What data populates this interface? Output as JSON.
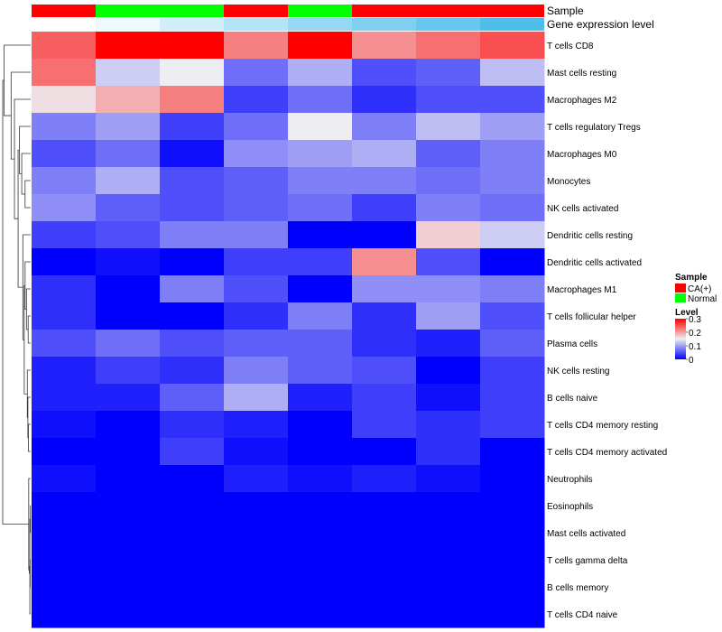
{
  "chart_data": {
    "type": "heatmap",
    "annotations": {
      "sample": {
        "label": "Sample",
        "values": [
          "CA(+)",
          "Normal",
          "Normal",
          "CA(+)",
          "Normal",
          "CA(+)",
          "CA(+)",
          "CA(+)"
        ]
      },
      "gene_expression": {
        "label": "Gene expression level",
        "values": [
          0.0,
          0.03,
          0.08,
          0.13,
          0.18,
          0.22,
          0.26,
          0.3
        ]
      }
    },
    "rows": [
      "T cells CD8",
      "Mast cells resting",
      "Macrophages M2",
      "T cells regulatory  Tregs",
      "Macrophages M0",
      "Monocytes",
      "NK cells activated",
      "Dendritic cells resting",
      "Dendritic cells activated",
      "Macrophages M1",
      "T cells follicular helper",
      "Plasma cells",
      "NK cells resting",
      "B cells naive",
      "T cells CD4 memory resting",
      "T cells CD4 memory activated",
      "Neutrophils",
      "Eosinophils",
      "Mast cells activated",
      "T cells gamma delta",
      "B cells memory",
      "T cells CD4 naive"
    ],
    "values": [
      [
        0.24,
        0.3,
        0.3,
        0.22,
        0.3,
        0.21,
        0.23,
        0.25
      ],
      [
        0.23,
        0.13,
        0.15,
        0.07,
        0.11,
        0.05,
        0.06,
        0.12
      ],
      [
        0.16,
        0.19,
        0.22,
        0.04,
        0.07,
        0.03,
        0.05,
        0.05
      ],
      [
        0.08,
        0.1,
        0.04,
        0.07,
        0.15,
        0.08,
        0.12,
        0.1
      ],
      [
        0.05,
        0.07,
        0.01,
        0.09,
        0.1,
        0.11,
        0.06,
        0.08
      ],
      [
        0.08,
        0.11,
        0.05,
        0.06,
        0.08,
        0.08,
        0.07,
        0.08
      ],
      [
        0.09,
        0.06,
        0.05,
        0.06,
        0.07,
        0.04,
        0.08,
        0.07
      ],
      [
        0.04,
        0.05,
        0.08,
        0.08,
        0.0,
        0.0,
        0.17,
        0.13
      ],
      [
        0.0,
        0.01,
        0.0,
        0.04,
        0.04,
        0.21,
        0.05,
        0.0
      ],
      [
        0.03,
        0.0,
        0.08,
        0.05,
        0.0,
        0.09,
        0.09,
        0.08
      ],
      [
        0.03,
        0.0,
        0.0,
        0.03,
        0.08,
        0.03,
        0.1,
        0.05
      ],
      [
        0.05,
        0.07,
        0.05,
        0.06,
        0.06,
        0.03,
        0.02,
        0.06
      ],
      [
        0.02,
        0.04,
        0.03,
        0.08,
        0.06,
        0.05,
        0.0,
        0.04
      ],
      [
        0.02,
        0.02,
        0.06,
        0.11,
        0.02,
        0.04,
        0.01,
        0.04
      ],
      [
        0.01,
        0.0,
        0.03,
        0.02,
        0.0,
        0.04,
        0.03,
        0.04
      ],
      [
        0.0,
        0.0,
        0.04,
        0.01,
        0.0,
        0.0,
        0.03,
        0.0
      ],
      [
        0.01,
        0.0,
        0.0,
        0.02,
        0.01,
        0.02,
        0.01,
        0.0
      ],
      [
        0.0,
        0.0,
        0.0,
        0.0,
        0.0,
        0.0,
        0.0,
        0.0
      ],
      [
        0.0,
        0.0,
        0.0,
        0.0,
        0.0,
        0.0,
        0.0,
        0.0
      ],
      [
        0.0,
        0.0,
        0.0,
        0.0,
        0.0,
        0.0,
        0.0,
        0.0
      ],
      [
        0.0,
        0.0,
        0.0,
        0.0,
        0.0,
        0.0,
        0.0,
        0.0
      ],
      [
        0.0,
        0.0,
        0.0,
        0.0,
        0.0,
        0.0,
        0.0,
        0.0
      ]
    ],
    "color_scale": {
      "min": 0,
      "max": 0.3,
      "stops": [
        {
          "value": 0,
          "color": "#0000ff"
        },
        {
          "value": 0.15,
          "color": "#eeeef2"
        },
        {
          "value": 0.3,
          "color": "#ff0000"
        }
      ]
    },
    "legend": {
      "position": "right",
      "sample_title": "Sample",
      "sample_entries": [
        {
          "label": "CA(+)",
          "color": "#ff0000"
        },
        {
          "label": "Normal",
          "color": "#00ff00"
        }
      ],
      "level_title": "Level",
      "level_ticks": [
        "0.3",
        "0.2",
        "0.1",
        "0"
      ]
    },
    "dendrogram": "row clustering tree on left side"
  }
}
